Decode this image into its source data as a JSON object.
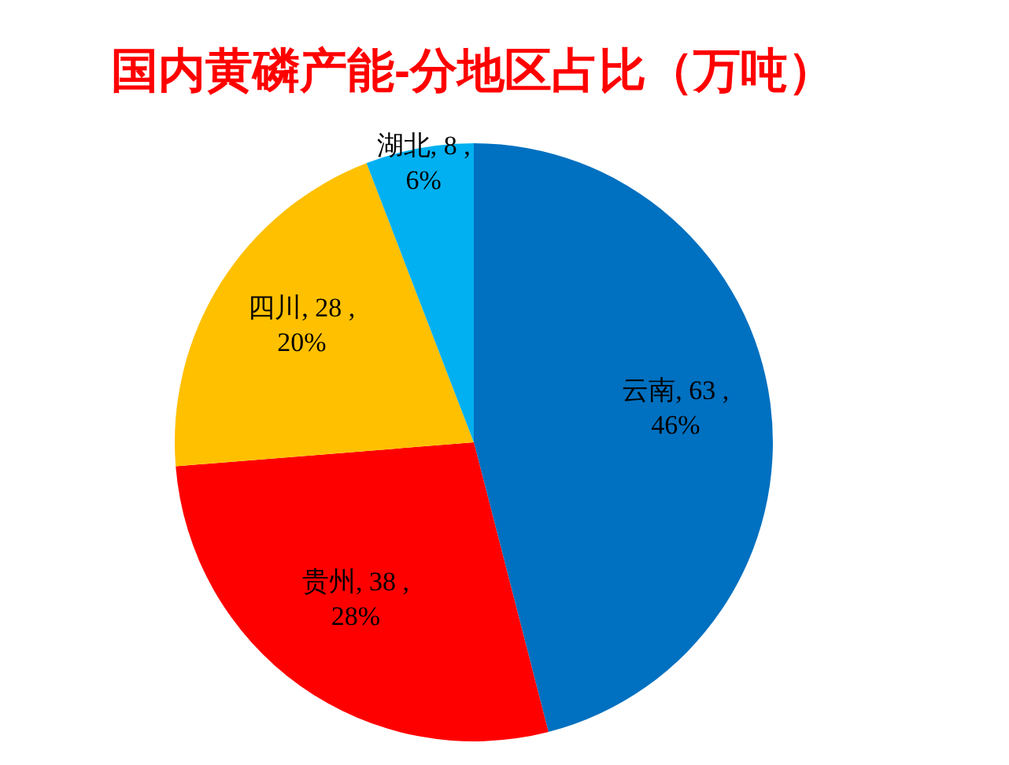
{
  "chart_data": {
    "type": "pie",
    "title": "国内黄磷产能-分地区占比（万吨）",
    "categories": [
      "云南",
      "贵州",
      "四川",
      "湖北"
    ],
    "values": [
      63,
      38,
      28,
      8
    ],
    "colors": [
      "#0070c0",
      "#ff0000",
      "#ffc000",
      "#00b0f0"
    ],
    "value_labels": [
      "63 ,\n46%",
      "38 ,\n28%",
      "28 ,\n20%",
      "8 ,\n6%"
    ]
  }
}
